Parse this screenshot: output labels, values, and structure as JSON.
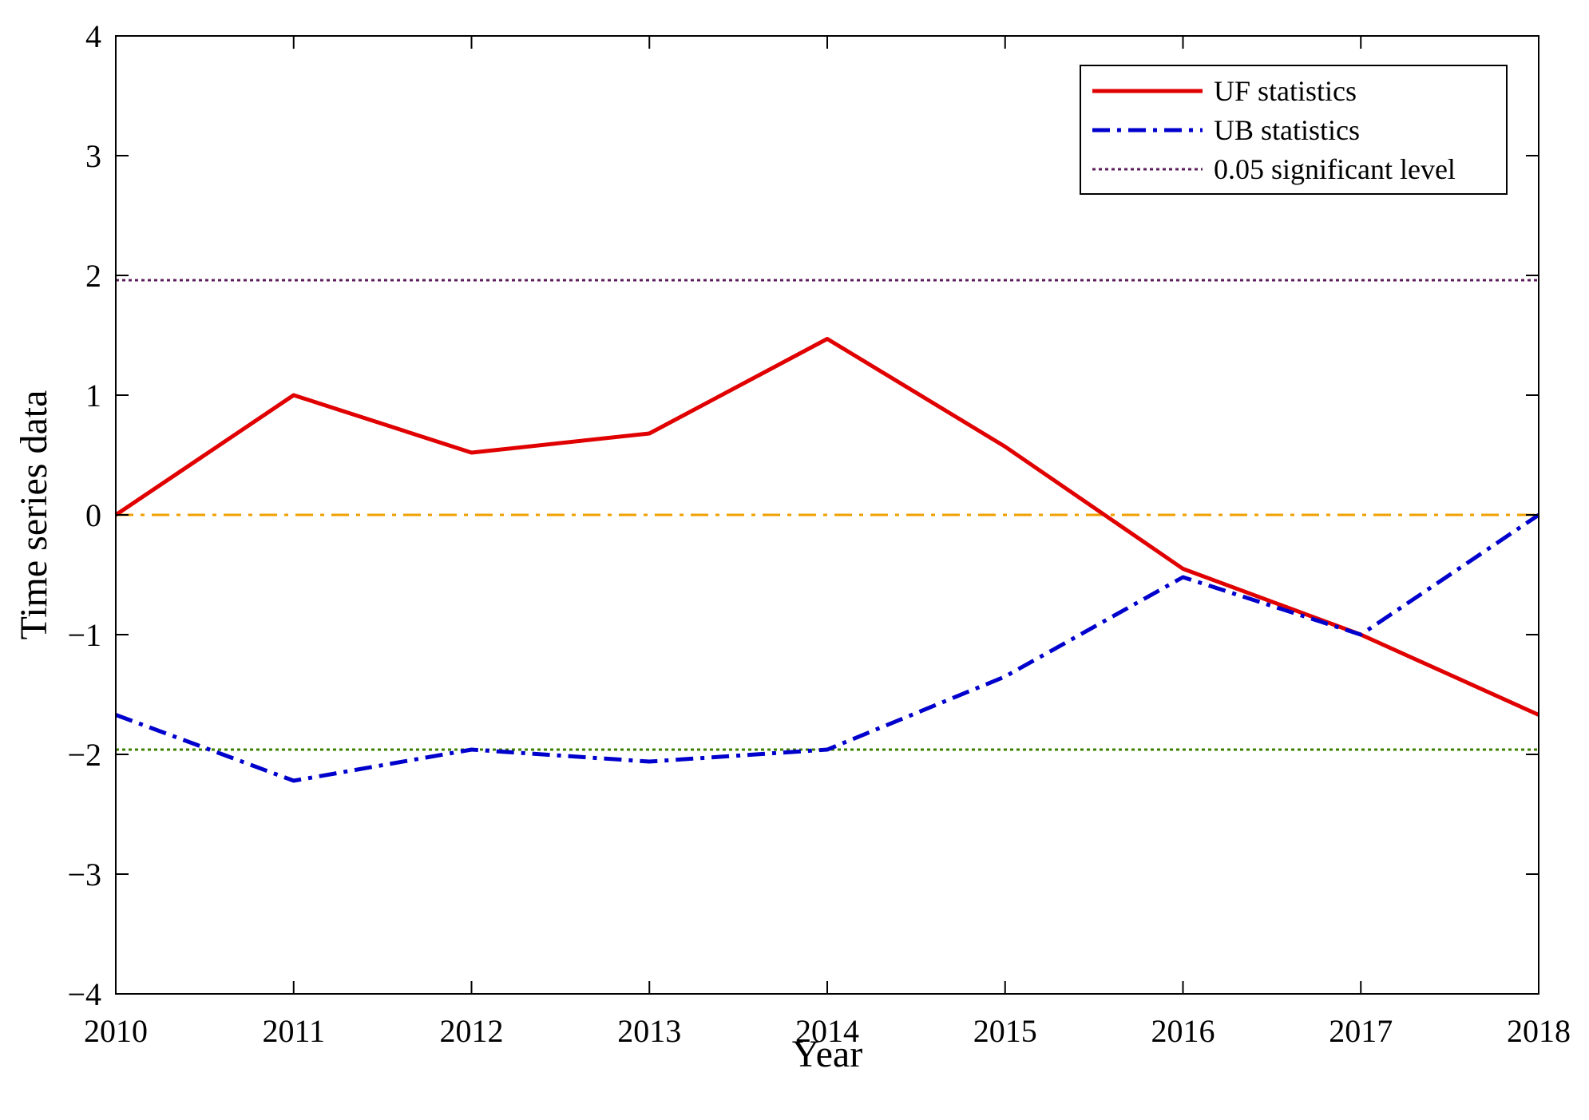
{
  "chart_data": {
    "type": "line",
    "title": "",
    "xlabel": "Year",
    "ylabel": "Time series data",
    "xlim": [
      2010,
      2018
    ],
    "ylim": [
      -4,
      4
    ],
    "x": [
      2010,
      2011,
      2012,
      2013,
      2014,
      2015,
      2016,
      2017,
      2018
    ],
    "xticks": [
      "2010",
      "2011",
      "2012",
      "2013",
      "2014",
      "2015",
      "2016",
      "2017",
      "2018"
    ],
    "yticks": [
      -4,
      -3,
      -2,
      -1,
      0,
      1,
      2,
      3,
      4
    ],
    "ytick_labels": [
      "−4",
      "−3",
      "−2",
      "−1",
      "0",
      "1",
      "2",
      "3",
      "4"
    ],
    "grid": false,
    "legend_position": "top-right",
    "series": [
      {
        "name": "UF statistics",
        "style": "solid",
        "color": "#e00000",
        "values": [
          0,
          1.0,
          0.52,
          0.68,
          1.47,
          0.57,
          -0.45,
          -1.0,
          -1.67
        ]
      },
      {
        "name": "UB statistics",
        "style": "dash-dot",
        "color": "#0000cc",
        "values": [
          -1.67,
          -2.22,
          -1.96,
          -2.06,
          -1.96,
          -1.35,
          -0.52,
          -1.0,
          0
        ]
      },
      {
        "name": "0.05 significant level",
        "style": "dotted",
        "color": "#5b1e5b",
        "values": [
          1.96,
          1.96,
          1.96,
          1.96,
          1.96,
          1.96,
          1.96,
          1.96,
          1.96
        ]
      }
    ],
    "reference_lines": [
      {
        "name": "zero-line",
        "y": 0,
        "style": "dash-dot",
        "color": "#f0a000"
      },
      {
        "name": "lower-significance-line",
        "y": -1.96,
        "style": "dotted",
        "color": "#3c8000"
      }
    ],
    "frame_color": "#000000"
  }
}
